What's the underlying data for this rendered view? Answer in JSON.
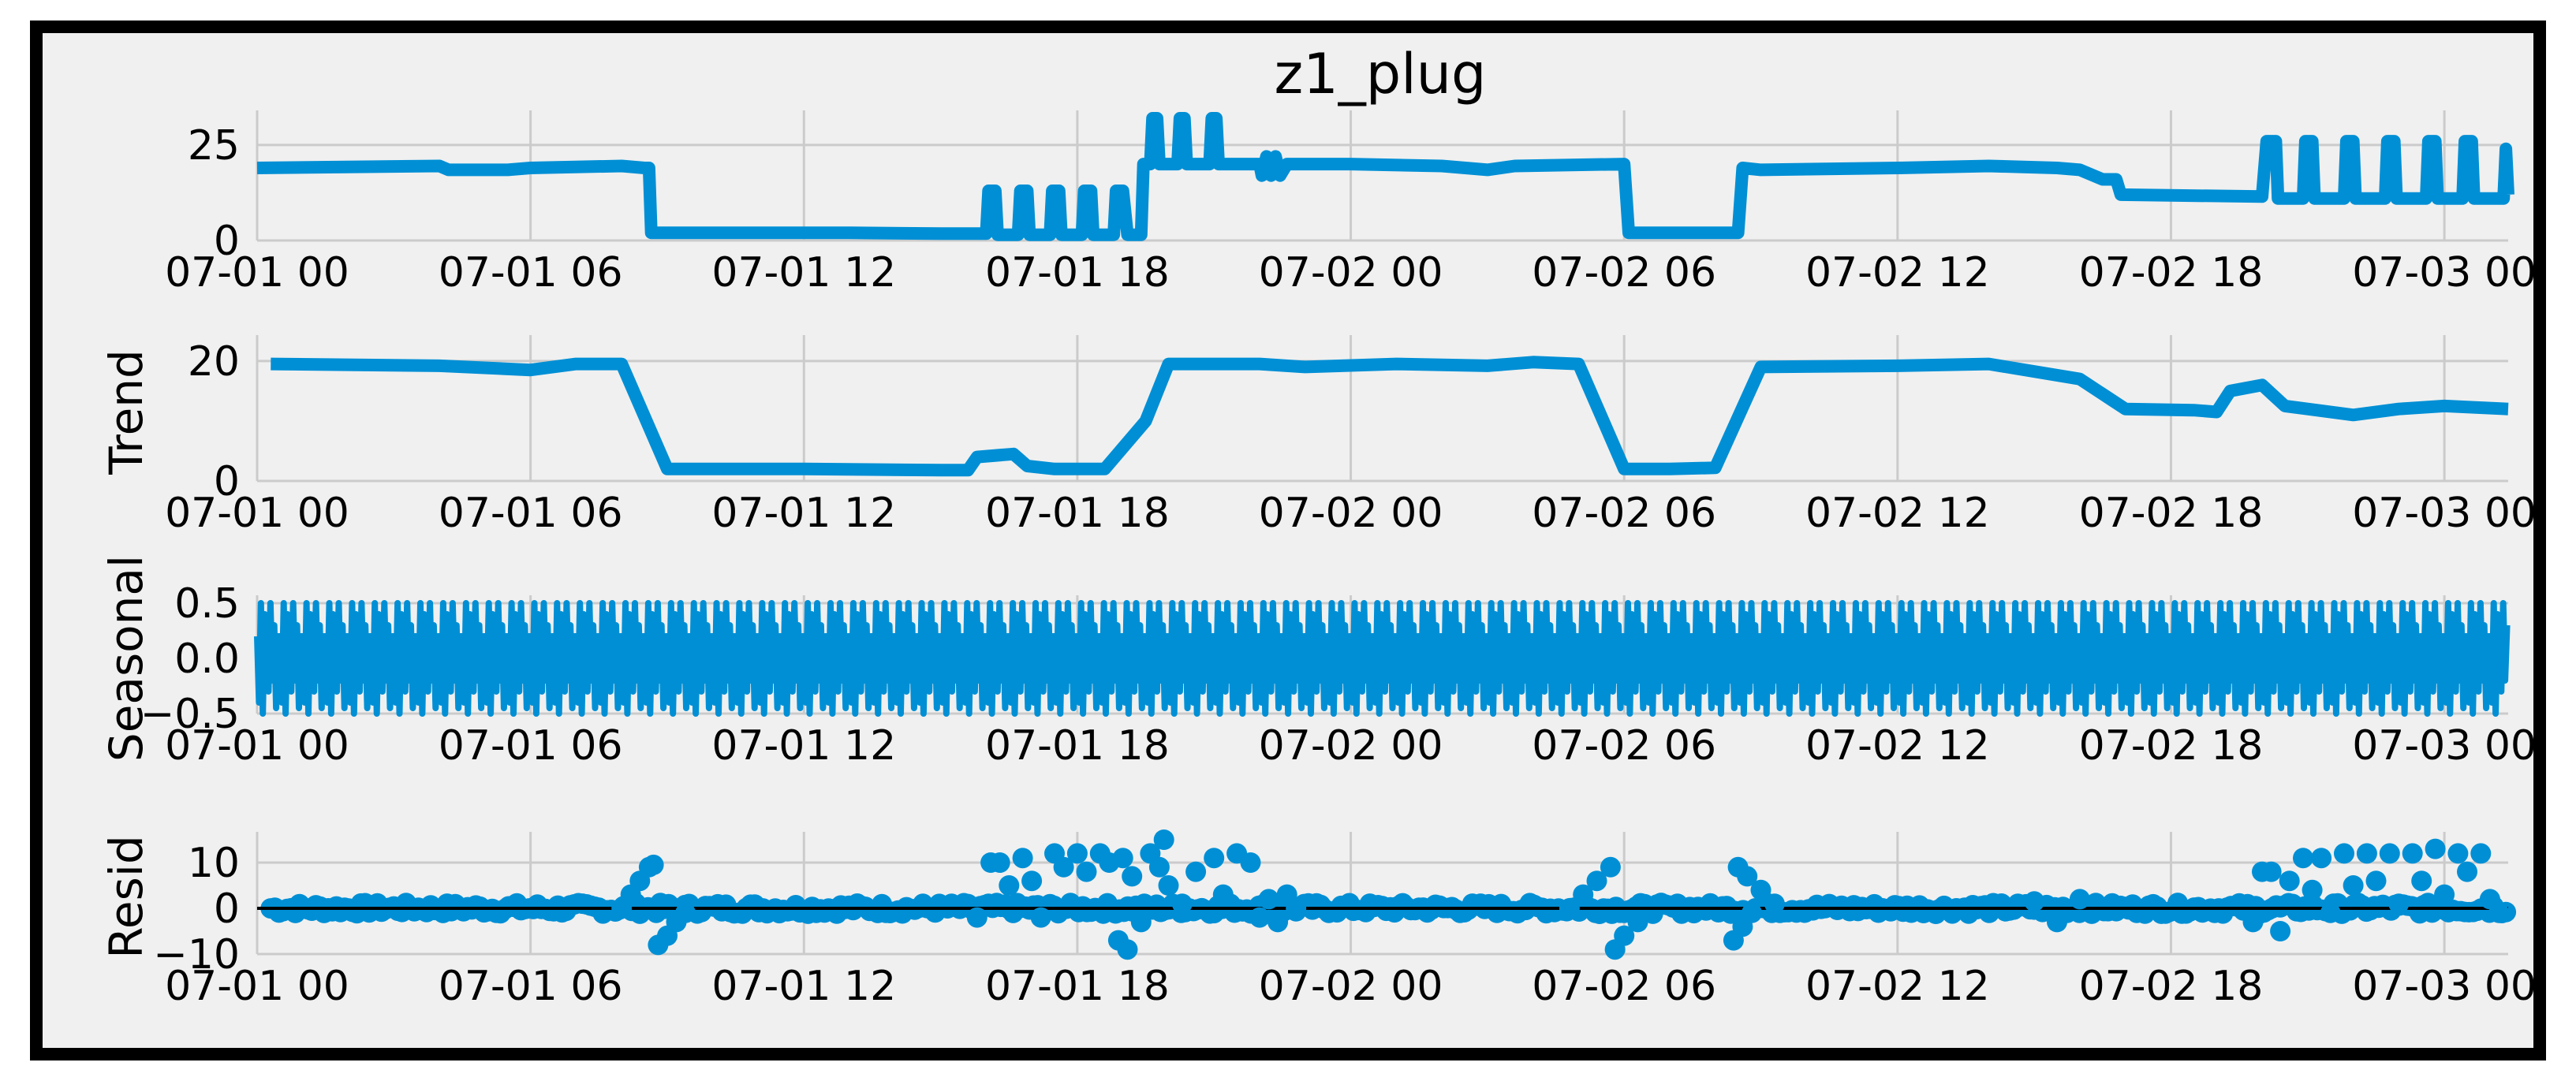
{
  "colors": {
    "series": "#008fd5",
    "panel_bg": "#f0f0f0",
    "grid": "#cbcbcb",
    "text": "#000000",
    "frame": "#000000",
    "zero_line": "#000000"
  },
  "chart_data": {
    "type": "line",
    "title": "z1_plug",
    "x_ticks": [
      "07-01 00",
      "07-01 06",
      "07-01 12",
      "07-01 18",
      "07-02 00",
      "07-02 06",
      "07-02 12",
      "07-02 18",
      "07-03 00"
    ],
    "x_tick_hours": [
      0,
      6,
      12,
      18,
      24,
      30,
      36,
      42,
      48
    ],
    "xlim_hours": [
      0,
      49.4
    ],
    "grid": true,
    "panels": [
      {
        "key": "observed",
        "ylabel": "",
        "yticks": [
          "0",
          "25"
        ],
        "ytick_values": [
          0,
          25
        ],
        "ylim": [
          0,
          32
        ],
        "series_type": "line",
        "segments": [
          [
            [
              0,
              19
            ],
            [
              4,
              19.5
            ],
            [
              4.2,
              18.5
            ],
            [
              5.5,
              18.5
            ],
            [
              6,
              19
            ],
            [
              8,
              19.5
            ],
            [
              8.5,
              19
            ],
            [
              8.6,
              19
            ],
            [
              8.65,
              2
            ],
            [
              13,
              2
            ],
            [
              15,
              1.8
            ],
            [
              16,
              1.8
            ],
            [
              16.05,
              13
            ],
            [
              16.2,
              13
            ],
            [
              16.25,
              1.5
            ],
            [
              16.7,
              1.5
            ],
            [
              16.75,
              13
            ],
            [
              16.9,
              13
            ],
            [
              16.95,
              1.5
            ],
            [
              17.4,
              1.5
            ],
            [
              17.45,
              13
            ],
            [
              17.6,
              13
            ],
            [
              17.65,
              1.5
            ],
            [
              18.1,
              1.5
            ],
            [
              18.15,
              13
            ],
            [
              18.3,
              13
            ],
            [
              18.35,
              1.5
            ],
            [
              18.8,
              1.5
            ],
            [
              18.85,
              13
            ],
            [
              19,
              13
            ],
            [
              19.1,
              1.5
            ],
            [
              19.4,
              1.5
            ],
            [
              19.45,
              20
            ],
            [
              19.6,
              20
            ],
            [
              19.65,
              32
            ],
            [
              19.75,
              32
            ],
            [
              19.8,
              20
            ],
            [
              20.2,
              20
            ],
            [
              20.25,
              32
            ],
            [
              20.35,
              32
            ],
            [
              20.4,
              20
            ],
            [
              20.9,
              20
            ],
            [
              20.95,
              32
            ],
            [
              21.05,
              32
            ],
            [
              21.1,
              20
            ],
            [
              22,
              20
            ],
            [
              22.05,
              17
            ],
            [
              22.15,
              22
            ],
            [
              22.25,
              17
            ],
            [
              22.35,
              22
            ],
            [
              22.45,
              17
            ],
            [
              22.6,
              20
            ],
            [
              24,
              20
            ],
            [
              26,
              19.5
            ],
            [
              27,
              18.5
            ],
            [
              27.6,
              19.5
            ],
            [
              30,
              20
            ],
            [
              30.1,
              2
            ],
            [
              31,
              2
            ],
            [
              32.5,
              2
            ],
            [
              32.6,
              19
            ],
            [
              33,
              18.5
            ],
            [
              36,
              19
            ],
            [
              38,
              19.5
            ],
            [
              39.5,
              19
            ],
            [
              40,
              18.5
            ],
            [
              40.5,
              16
            ],
            [
              40.8,
              16
            ],
            [
              40.9,
              12
            ],
            [
              44,
              11.5
            ],
            [
              44.1,
              26
            ],
            [
              44.3,
              26
            ],
            [
              44.35,
              11
            ],
            [
              44.9,
              11
            ],
            [
              44.95,
              26
            ],
            [
              45.1,
              26
            ],
            [
              45.15,
              11
            ],
            [
              45.8,
              11
            ],
            [
              45.85,
              26
            ],
            [
              46,
              26
            ],
            [
              46.05,
              11
            ],
            [
              46.7,
              11
            ],
            [
              46.75,
              26
            ],
            [
              46.9,
              26
            ],
            [
              46.95,
              11
            ],
            [
              47.6,
              11
            ],
            [
              47.65,
              26
            ],
            [
              47.8,
              26
            ],
            [
              47.85,
              11
            ],
            [
              48.4,
              11
            ],
            [
              48.45,
              26
            ],
            [
              48.6,
              26
            ],
            [
              48.65,
              11
            ],
            [
              49.3,
              11
            ],
            [
              49.35,
              24
            ],
            [
              49.4,
              12
            ]
          ]
        ]
      },
      {
        "key": "trend",
        "ylabel": "Trend",
        "yticks": [
          "0",
          "20"
        ],
        "ytick_values": [
          0,
          20
        ],
        "ylim": [
          0,
          23
        ],
        "series_type": "line",
        "segments": [
          [
            [
              0.3,
              19.5
            ],
            [
              4,
              19.2
            ],
            [
              6,
              18.5
            ],
            [
              7,
              19.5
            ],
            [
              8,
              19.5
            ],
            [
              9,
              2
            ],
            [
              12,
              2
            ],
            [
              15,
              1.8
            ],
            [
              15.6,
              1.8
            ],
            [
              15.8,
              4
            ],
            [
              16.6,
              4.5
            ],
            [
              16.9,
              2.5
            ],
            [
              17.5,
              2
            ],
            [
              18.6,
              2
            ],
            [
              19.5,
              10
            ],
            [
              20,
              19.5
            ],
            [
              22,
              19.5
            ],
            [
              23,
              19
            ],
            [
              25,
              19.5
            ],
            [
              27,
              19.2
            ],
            [
              28,
              19.8
            ],
            [
              29,
              19.5
            ],
            [
              30,
              2
            ],
            [
              31,
              2
            ],
            [
              32,
              2.2
            ],
            [
              33,
              19
            ],
            [
              36,
              19.2
            ],
            [
              38,
              19.5
            ],
            [
              40,
              17
            ],
            [
              41,
              12
            ],
            [
              42.5,
              11.8
            ],
            [
              43,
              11.5
            ],
            [
              43.3,
              15
            ],
            [
              44,
              16
            ],
            [
              44.5,
              12.5
            ],
            [
              46,
              11
            ],
            [
              47,
              12
            ],
            [
              48,
              12.5
            ],
            [
              49.4,
              12
            ]
          ]
        ]
      },
      {
        "key": "seasonal",
        "ylabel": "Seasonal",
        "yticks": [
          "0.5",
          "0.0",
          "−0.5"
        ],
        "ytick_values": [
          0.5,
          0.0,
          -0.5
        ],
        "ylim": [
          -0.5,
          0.5
        ],
        "series_type": "oscillation",
        "period_hours": 0.5,
        "seasonal_pattern": [
          0.2,
          -0.4,
          0.5,
          -0.5,
          0.4,
          0.1,
          -0.3,
          0.5,
          -0.2,
          0.3,
          -0.45,
          0.2
        ]
      },
      {
        "key": "resid",
        "ylabel": "Resid",
        "yticks": [
          "10",
          "0",
          "−10"
        ],
        "ytick_values": [
          10,
          0,
          -10
        ],
        "ylim": [
          -10,
          15
        ],
        "series_type": "scatter",
        "zero_line": true,
        "baseline_range_hours": [
          0.3,
          49.4
        ],
        "baseline_noise": [
          -1.2,
          1.2
        ],
        "clusters": [
          [
            [
              8.0,
              0
            ],
            [
              8.2,
              3
            ],
            [
              8.4,
              6
            ],
            [
              8.6,
              9
            ],
            [
              8.7,
              9.5
            ],
            [
              8.8,
              -8
            ],
            [
              9.0,
              -6
            ],
            [
              9.2,
              -3
            ],
            [
              9.4,
              -1
            ]
          ],
          [
            [
              15.8,
              -2
            ],
            [
              16.1,
              10
            ],
            [
              16.3,
              10
            ],
            [
              16.5,
              5
            ],
            [
              16.8,
              11
            ],
            [
              17.0,
              6
            ],
            [
              17.2,
              -2
            ],
            [
              17.5,
              12
            ],
            [
              17.7,
              9
            ],
            [
              18.0,
              12
            ],
            [
              18.2,
              8
            ],
            [
              18.5,
              12
            ],
            [
              18.7,
              10
            ],
            [
              19.0,
              11
            ],
            [
              19.2,
              7
            ],
            [
              19.4,
              -3
            ],
            [
              19.6,
              12
            ],
            [
              19.8,
              9
            ],
            [
              19.9,
              15
            ],
            [
              20.0,
              5
            ],
            [
              20.3,
              1
            ],
            [
              20.6,
              8
            ],
            [
              21.0,
              11
            ],
            [
              21.2,
              3
            ],
            [
              21.5,
              12
            ],
            [
              21.8,
              10
            ],
            [
              19.1,
              -9
            ],
            [
              18.9,
              -7
            ]
          ],
          [
            [
              22.0,
              -2
            ],
            [
              22.2,
              2
            ],
            [
              22.4,
              -3
            ],
            [
              22.6,
              3
            ],
            [
              22.8,
              0
            ]
          ],
          [
            [
              28.8,
              0
            ],
            [
              29.1,
              3
            ],
            [
              29.4,
              6
            ],
            [
              29.7,
              9
            ],
            [
              29.8,
              -9
            ],
            [
              30.0,
              -6
            ],
            [
              30.3,
              -3
            ]
          ],
          [
            [
              32.4,
              -7
            ],
            [
              32.6,
              -4
            ],
            [
              32.8,
              -1
            ],
            [
              32.5,
              9
            ],
            [
              32.7,
              7
            ],
            [
              33.0,
              4
            ],
            [
              33.3,
              1
            ]
          ],
          [
            [
              39,
              1.5
            ],
            [
              39.5,
              -3
            ],
            [
              40,
              2
            ]
          ],
          [
            [
              43.8,
              -3
            ],
            [
              44.0,
              8
            ],
            [
              44.2,
              8
            ],
            [
              44.4,
              -5
            ],
            [
              44.6,
              6
            ],
            [
              44.9,
              11
            ],
            [
              45.1,
              4
            ],
            [
              45.3,
              11
            ],
            [
              45.5,
              -1
            ],
            [
              45.8,
              12
            ],
            [
              46.0,
              5
            ],
            [
              46.3,
              12
            ],
            [
              46.5,
              6
            ],
            [
              46.8,
              12
            ],
            [
              47.0,
              1
            ],
            [
              47.3,
              12
            ],
            [
              47.5,
              6
            ],
            [
              47.8,
              13
            ],
            [
              48.0,
              3
            ],
            [
              48.3,
              12
            ],
            [
              48.5,
              8
            ],
            [
              48.8,
              12
            ],
            [
              49.0,
              2
            ],
            [
              49.2,
              -1
            ]
          ]
        ]
      }
    ]
  }
}
